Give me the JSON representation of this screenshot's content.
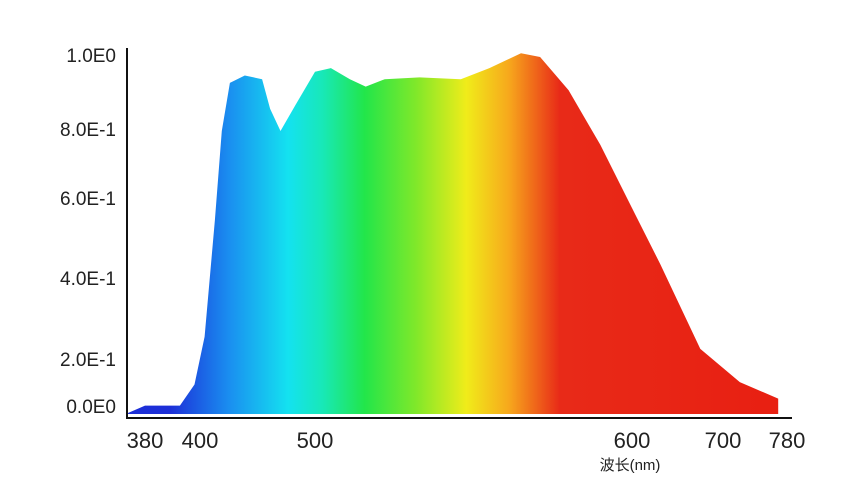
{
  "chart_data": {
    "type": "area",
    "x_label": "波长(nm)",
    "x": [
      380,
      392.7,
      398,
      404,
      413,
      419,
      426,
      439,
      454,
      461,
      470,
      483,
      500,
      505,
      511,
      516,
      522,
      533,
      546,
      555,
      565,
      571,
      580,
      590,
      600,
      631,
      675,
      721,
      769
    ],
    "values": [
      0.01,
      0.01,
      0.1,
      0.26,
      0.55,
      0.8,
      0.93,
      0.95,
      0.94,
      0.86,
      0.8,
      0.87,
      0.96,
      0.97,
      0.94,
      0.92,
      0.94,
      0.945,
      0.94,
      0.97,
      1.01,
      1.0,
      0.91,
      0.76,
      0.58,
      0.44,
      0.23,
      0.11,
      0.04
    ],
    "xlim": [
      380,
      780
    ],
    "xticks": [
      380,
      400,
      500,
      600,
      700,
      780
    ],
    "ylim": [
      0,
      1.0
    ],
    "yticks": [
      {
        "value": 0,
        "label": "0.0E0"
      },
      {
        "value": 0.2,
        "label": "2.0E-1"
      },
      {
        "value": 0.4,
        "label": "4.0E-1"
      },
      {
        "value": 0.6,
        "label": "6.0E-1"
      },
      {
        "value": 0.8,
        "label": "8.0E-1"
      },
      {
        "value": 1.0,
        "label": "1.0E0"
      }
    ],
    "fill": "spectrum"
  }
}
